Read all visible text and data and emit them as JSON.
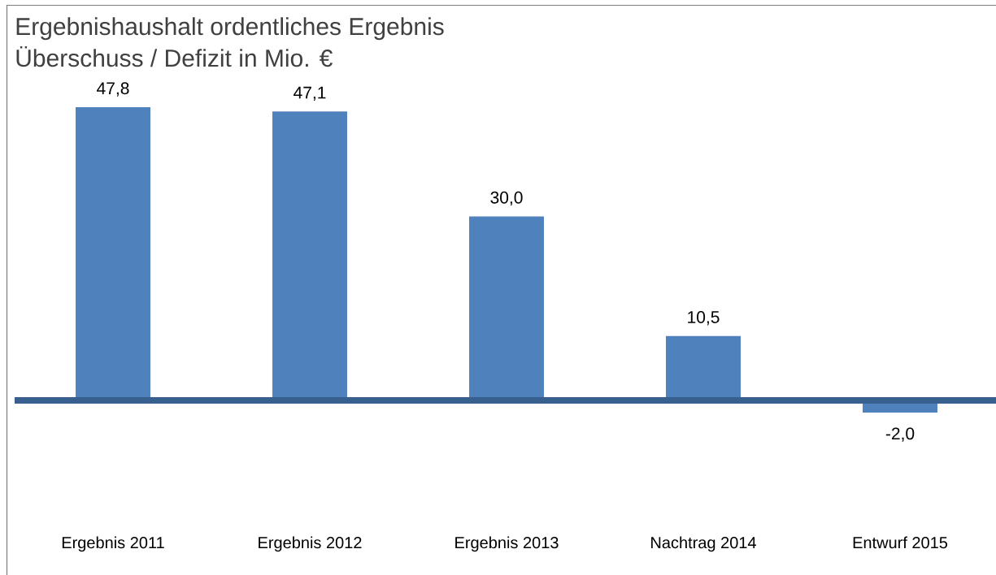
{
  "chart_data": {
    "type": "bar",
    "title": "Ergebnishaushalt ordentliches Ergebnis",
    "subtitle": "Überschuss / Defizit in Mio. €",
    "categories": [
      "Ergebnis 2011",
      "Ergebnis 2012",
      "Ergebnis 2013",
      "Nachtrag 2014",
      "Entwurf 2015"
    ],
    "values": [
      47.8,
      47.1,
      30.0,
      10.5,
      -2.0
    ],
    "value_labels": [
      "47,8",
      "47,1",
      "30,0",
      "10,5",
      "-2,0"
    ],
    "color": "#4f81bd",
    "tick_labels": "x",
    "ref_lines": [
      {
        "axis": "y",
        "value": 0,
        "color": "#38608e"
      }
    ]
  }
}
